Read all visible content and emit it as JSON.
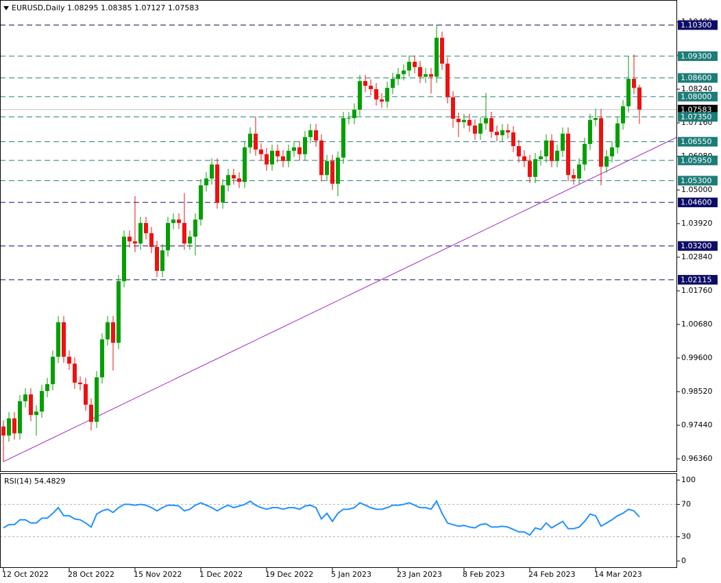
{
  "chart_data": [
    {
      "type": "candlestick",
      "title": "EURUSD,Daily  1.08295 1.08385 1.07127 1.07583",
      "up_color": "#00a000",
      "down_color": "#ee1111",
      "categories": [
        "12 Oct 2022",
        null,
        null,
        null,
        null,
        null,
        null,
        null,
        null,
        null,
        null,
        null,
        "28 Oct 2022",
        null,
        null,
        null,
        null,
        null,
        null,
        null,
        null,
        null,
        null,
        null,
        "15 Nov 2022",
        null,
        null,
        null,
        null,
        null,
        null,
        null,
        null,
        null,
        null,
        null,
        "1 Dec 2022",
        null,
        null,
        null,
        null,
        null,
        null,
        null,
        null,
        null,
        null,
        null,
        "19 Dec 2022",
        null,
        null,
        null,
        null,
        null,
        null,
        null,
        null,
        null,
        null,
        null,
        "5 Jan 2023",
        null,
        null,
        null,
        null,
        null,
        null,
        null,
        null,
        null,
        null,
        null,
        "23 Jan 2023",
        null,
        null,
        null,
        null,
        null,
        null,
        null,
        null,
        null,
        null,
        null,
        "8 Feb 2023",
        null,
        null,
        null,
        null,
        null,
        null,
        null,
        null,
        null,
        null,
        null,
        "24 Feb 2023",
        null,
        null,
        null,
        null,
        null,
        null,
        null,
        null,
        null,
        null,
        null,
        "14 Mar 2023",
        null,
        null,
        null,
        null,
        null,
        null,
        null,
        null
      ],
      "open": [
        0.974,
        0.9711,
        0.9766,
        0.9718,
        0.9821,
        0.9843,
        0.9777,
        0.9788,
        0.9854,
        0.9876,
        0.9964,
        1.0075,
        0.9964,
        0.9942,
        0.9881,
        0.9876,
        0.981,
        0.9755,
        0.9898,
        1.002,
        1.0075,
        1.0009,
        1.0207,
        1.035,
        1.0335,
        1.0328,
        1.0394,
        1.0361,
        1.0317,
        1.024,
        1.0306,
        1.0394,
        1.0405,
        1.0394,
        1.0328,
        1.035,
        1.0405,
        1.0515,
        1.0537,
        1.0582,
        1.046,
        1.0515,
        1.0548,
        1.0537,
        1.0526,
        1.0637,
        1.0681,
        1.063,
        1.0615,
        1.0582,
        1.0626,
        1.0608,
        1.0593,
        1.0626,
        1.0637,
        1.0615,
        1.067,
        1.0692,
        1.0659,
        1.0548,
        1.0593,
        1.052,
        1.0604,
        1.0731,
        1.0731,
        1.0758,
        1.085,
        1.0835,
        1.0824,
        1.0791,
        1.0784,
        1.0828,
        1.0857,
        1.0872,
        1.0884,
        1.0912,
        1.0895,
        1.0864,
        1.0872,
        1.0864,
        1.0989,
        1.0906,
        1.0798,
        1.0729,
        1.0718,
        1.0725,
        1.0707,
        1.0681,
        1.0714,
        1.0731,
        1.0687,
        1.0676,
        1.0692,
        1.0685,
        1.0641,
        1.0608,
        1.0593,
        1.0542,
        1.0599,
        1.0608,
        1.0659,
        1.0593,
        1.0626,
        1.0681,
        1.0548,
        1.0537,
        1.0582,
        1.0648,
        1.0725,
        1.0731,
        1.0575,
        1.0608,
        1.0637,
        1.0714,
        1.0769,
        1.0857,
        1.08295
      ],
      "high": [
        0.976,
        0.9786,
        0.9786,
        0.9841,
        0.9863,
        0.9863,
        0.9808,
        0.9874,
        0.9896,
        0.9984,
        1.0095,
        1.0095,
        0.9984,
        0.9962,
        0.9901,
        0.9896,
        0.983,
        0.9918,
        1.004,
        1.0095,
        1.0095,
        1.0227,
        1.037,
        1.037,
        1.048,
        1.0414,
        1.0414,
        1.0381,
        1.0337,
        1.0326,
        1.0414,
        1.0425,
        1.0425,
        1.049,
        1.037,
        1.0425,
        1.0535,
        1.0557,
        1.0602,
        1.0602,
        1.0535,
        1.0568,
        1.0568,
        1.0557,
        1.0657,
        1.0701,
        1.0736,
        1.065,
        1.0635,
        1.0646,
        1.0646,
        1.0628,
        1.0646,
        1.0657,
        1.0657,
        1.069,
        1.0712,
        1.0712,
        1.0679,
        1.0613,
        1.0613,
        1.0624,
        1.0751,
        1.0751,
        1.0778,
        1.087,
        1.087,
        1.0855,
        1.0844,
        1.0811,
        1.0848,
        1.0877,
        1.0892,
        1.0904,
        1.0932,
        1.0932,
        1.0915,
        1.0892,
        1.0892,
        1.1031,
        1.1009,
        1.0926,
        1.0818,
        1.0749,
        1.0745,
        1.0745,
        1.0727,
        1.0734,
        1.0812,
        1.0751,
        1.0707,
        1.0712,
        1.0712,
        1.0705,
        1.0661,
        1.0628,
        1.0613,
        1.0619,
        1.0628,
        1.0679,
        1.0679,
        1.0646,
        1.0701,
        1.0701,
        1.0568,
        1.0602,
        1.0668,
        1.0745,
        1.0761,
        1.0761,
        1.0628,
        1.0657,
        1.0734,
        1.0789,
        1.093,
        1.0935,
        1.08385
      ],
      "low": [
        0.9627,
        0.9691,
        0.9698,
        0.9698,
        0.9801,
        0.9757,
        0.971,
        0.9768,
        0.9834,
        0.9856,
        0.9944,
        0.9944,
        0.9922,
        0.9861,
        0.9856,
        0.979,
        0.9727,
        0.9735,
        0.9878,
        1.0,
        0.992,
        0.9989,
        1.0187,
        1.0315,
        1.03,
        1.0308,
        1.0341,
        1.0297,
        1.022,
        1.022,
        1.0286,
        1.0374,
        1.0374,
        1.0308,
        1.0308,
        1.029,
        1.0385,
        1.0495,
        1.0517,
        1.044,
        1.044,
        1.0495,
        1.0517,
        1.0506,
        1.0506,
        1.0617,
        1.061,
        1.0595,
        1.0562,
        1.0562,
        1.0588,
        1.0573,
        1.0573,
        1.0606,
        1.0595,
        1.0595,
        1.065,
        1.0639,
        1.0528,
        1.0528,
        1.05,
        1.048,
        1.0584,
        1.0711,
        1.0711,
        1.0738,
        1.0815,
        1.0804,
        1.0771,
        1.0764,
        1.0764,
        1.0808,
        1.0837,
        1.0852,
        1.0864,
        1.0875,
        1.0844,
        1.0844,
        1.081,
        1.0844,
        1.0886,
        1.0778,
        1.07,
        1.067,
        1.0698,
        1.0687,
        1.0661,
        1.0661,
        1.0694,
        1.0667,
        1.0656,
        1.0656,
        1.0665,
        1.0621,
        1.0588,
        1.0573,
        1.0522,
        1.0522,
        1.0579,
        1.0588,
        1.0573,
        1.0573,
        1.0606,
        1.0528,
        1.0517,
        1.0517,
        1.0562,
        1.0628,
        1.0705,
        1.0515,
        1.0555,
        1.0588,
        1.0617,
        1.0694,
        1.0749,
        1.0808,
        1.07127
      ],
      "close": [
        0.9711,
        0.9766,
        0.9718,
        0.9821,
        0.9843,
        0.9777,
        0.9788,
        0.9854,
        0.9876,
        0.9964,
        1.0075,
        0.9964,
        0.9942,
        0.9881,
        0.9876,
        0.981,
        0.9755,
        0.9898,
        1.002,
        1.0075,
        1.0009,
        1.0207,
        1.035,
        1.0335,
        1.0328,
        1.0394,
        1.0361,
        1.0317,
        1.024,
        1.0306,
        1.0394,
        1.0405,
        1.0394,
        1.0328,
        1.035,
        1.0405,
        1.0515,
        1.0537,
        1.0582,
        1.046,
        1.0515,
        1.0548,
        1.0537,
        1.0526,
        1.0637,
        1.0681,
        1.063,
        1.0615,
        1.0582,
        1.0626,
        1.0608,
        1.0593,
        1.0626,
        1.0637,
        1.0615,
        1.067,
        1.0692,
        1.0659,
        1.0548,
        1.0593,
        1.052,
        1.0604,
        1.0731,
        1.0731,
        1.0758,
        1.085,
        1.0835,
        1.0824,
        1.0791,
        1.0784,
        1.0828,
        1.0857,
        1.0872,
        1.0884,
        1.0912,
        1.0895,
        1.0864,
        1.0872,
        1.0864,
        1.0989,
        1.0906,
        1.0798,
        1.0729,
        1.0718,
        1.0725,
        1.0707,
        1.0681,
        1.0714,
        1.0731,
        1.0687,
        1.0676,
        1.0692,
        1.0685,
        1.0641,
        1.0608,
        1.0593,
        1.0542,
        1.0599,
        1.0608,
        1.0659,
        1.0593,
        1.0626,
        1.0681,
        1.0548,
        1.0537,
        1.0582,
        1.0648,
        1.0725,
        1.0731,
        1.0575,
        1.0608,
        1.0637,
        1.0714,
        1.0769,
        1.0857,
        1.0828,
        1.07583
      ],
      "ylim": [
        0.95963,
        1.11105
      ],
      "yticks": [
        {
          "value": 1.104,
          "label": "1.10400"
        },
        {
          "value": 1.0932,
          "label": "1.09320"
        },
        {
          "value": 1.0824,
          "label": "1.08240"
        },
        {
          "value": 1.0716,
          "label": "1.07160"
        },
        {
          "value": 1.0608,
          "label": "1.06080"
        },
        {
          "value": 1.05,
          "label": "1.05000"
        },
        {
          "value": 1.0392,
          "label": "1.03920"
        },
        {
          "value": 1.0284,
          "label": "1.02840"
        },
        {
          "value": 1.0176,
          "label": "1.01760"
        },
        {
          "value": 1.0068,
          "label": "1.00680"
        },
        {
          "value": 0.996,
          "label": "0.99600"
        },
        {
          "value": 0.9852,
          "label": "0.98520"
        },
        {
          "value": 0.9744,
          "label": "0.97440"
        },
        {
          "value": 0.9636,
          "label": "0.96360"
        }
      ],
      "levels": [
        {
          "value": 1.103,
          "label": "1.10300",
          "color": "#0c0c66",
          "style": "dashed"
        },
        {
          "value": 1.093,
          "label": "1.09300",
          "color": "#1c7c78",
          "style": "dashed"
        },
        {
          "value": 1.086,
          "label": "1.08600",
          "color": "#1c7c78",
          "style": "dashed"
        },
        {
          "value": 1.08,
          "label": "1.08000",
          "color": "#1c7c78",
          "style": "dashed"
        },
        {
          "value": 1.07583,
          "label": "1.07583",
          "color": "#000000",
          "style": "solid"
        },
        {
          "value": 1.0735,
          "label": "1.07350",
          "color": "#1c7c78",
          "style": "dashed"
        },
        {
          "value": 1.0655,
          "label": "1.06550",
          "color": "#1c7c78",
          "style": "dashed"
        },
        {
          "value": 1.0595,
          "label": "1.05950",
          "color": "#1c7c78",
          "style": "dashed"
        },
        {
          "value": 1.053,
          "label": "1.05300",
          "color": "#1c7c78",
          "style": "dashed"
        },
        {
          "value": 1.046,
          "label": "1.04600",
          "color": "#0c0c66",
          "style": "dashed"
        },
        {
          "value": 1.032,
          "label": "1.03200",
          "color": "#0c0c66",
          "style": "dashed"
        },
        {
          "value": 1.02115,
          "label": "1.02115",
          "color": "#0c0c66",
          "style": "dashed"
        }
      ],
      "trendline": {
        "x": [
          0,
          122.9
        ],
        "y": [
          0.9627,
          1.067
        ],
        "color": "#a020c0"
      }
    },
    {
      "type": "line",
      "title": "RSI(14) 54.4829",
      "color": "#1e90ff",
      "values": [
        41,
        45,
        45,
        51,
        51,
        47,
        47,
        53,
        53,
        59,
        66,
        56,
        56,
        52,
        51,
        47,
        42,
        58,
        62,
        64,
        60,
        66,
        70,
        70,
        69,
        70,
        69,
        66,
        62,
        66,
        69,
        69,
        68,
        62,
        64,
        69,
        72,
        69,
        66,
        62,
        66,
        69,
        66,
        68,
        70,
        74,
        69,
        66,
        64,
        66,
        66,
        64,
        66,
        66,
        64,
        68,
        69,
        66,
        52,
        59,
        49,
        59,
        64,
        64,
        66,
        72,
        69,
        66,
        64,
        64,
        66,
        69,
        69,
        70,
        72,
        69,
        66,
        66,
        64,
        74,
        59,
        47,
        45,
        43,
        44,
        42,
        41,
        45,
        46,
        42,
        42,
        43,
        42,
        39,
        36,
        36,
        32,
        41,
        39,
        47,
        41,
        45,
        49,
        40,
        40,
        42,
        49,
        58,
        56,
        43,
        47,
        51,
        56,
        59,
        64,
        62,
        54.4829
      ],
      "ylim": [
        -8.5,
        108.5
      ],
      "yticks": [
        100,
        70,
        30,
        0
      ],
      "levels": [
        70,
        30
      ]
    }
  ]
}
